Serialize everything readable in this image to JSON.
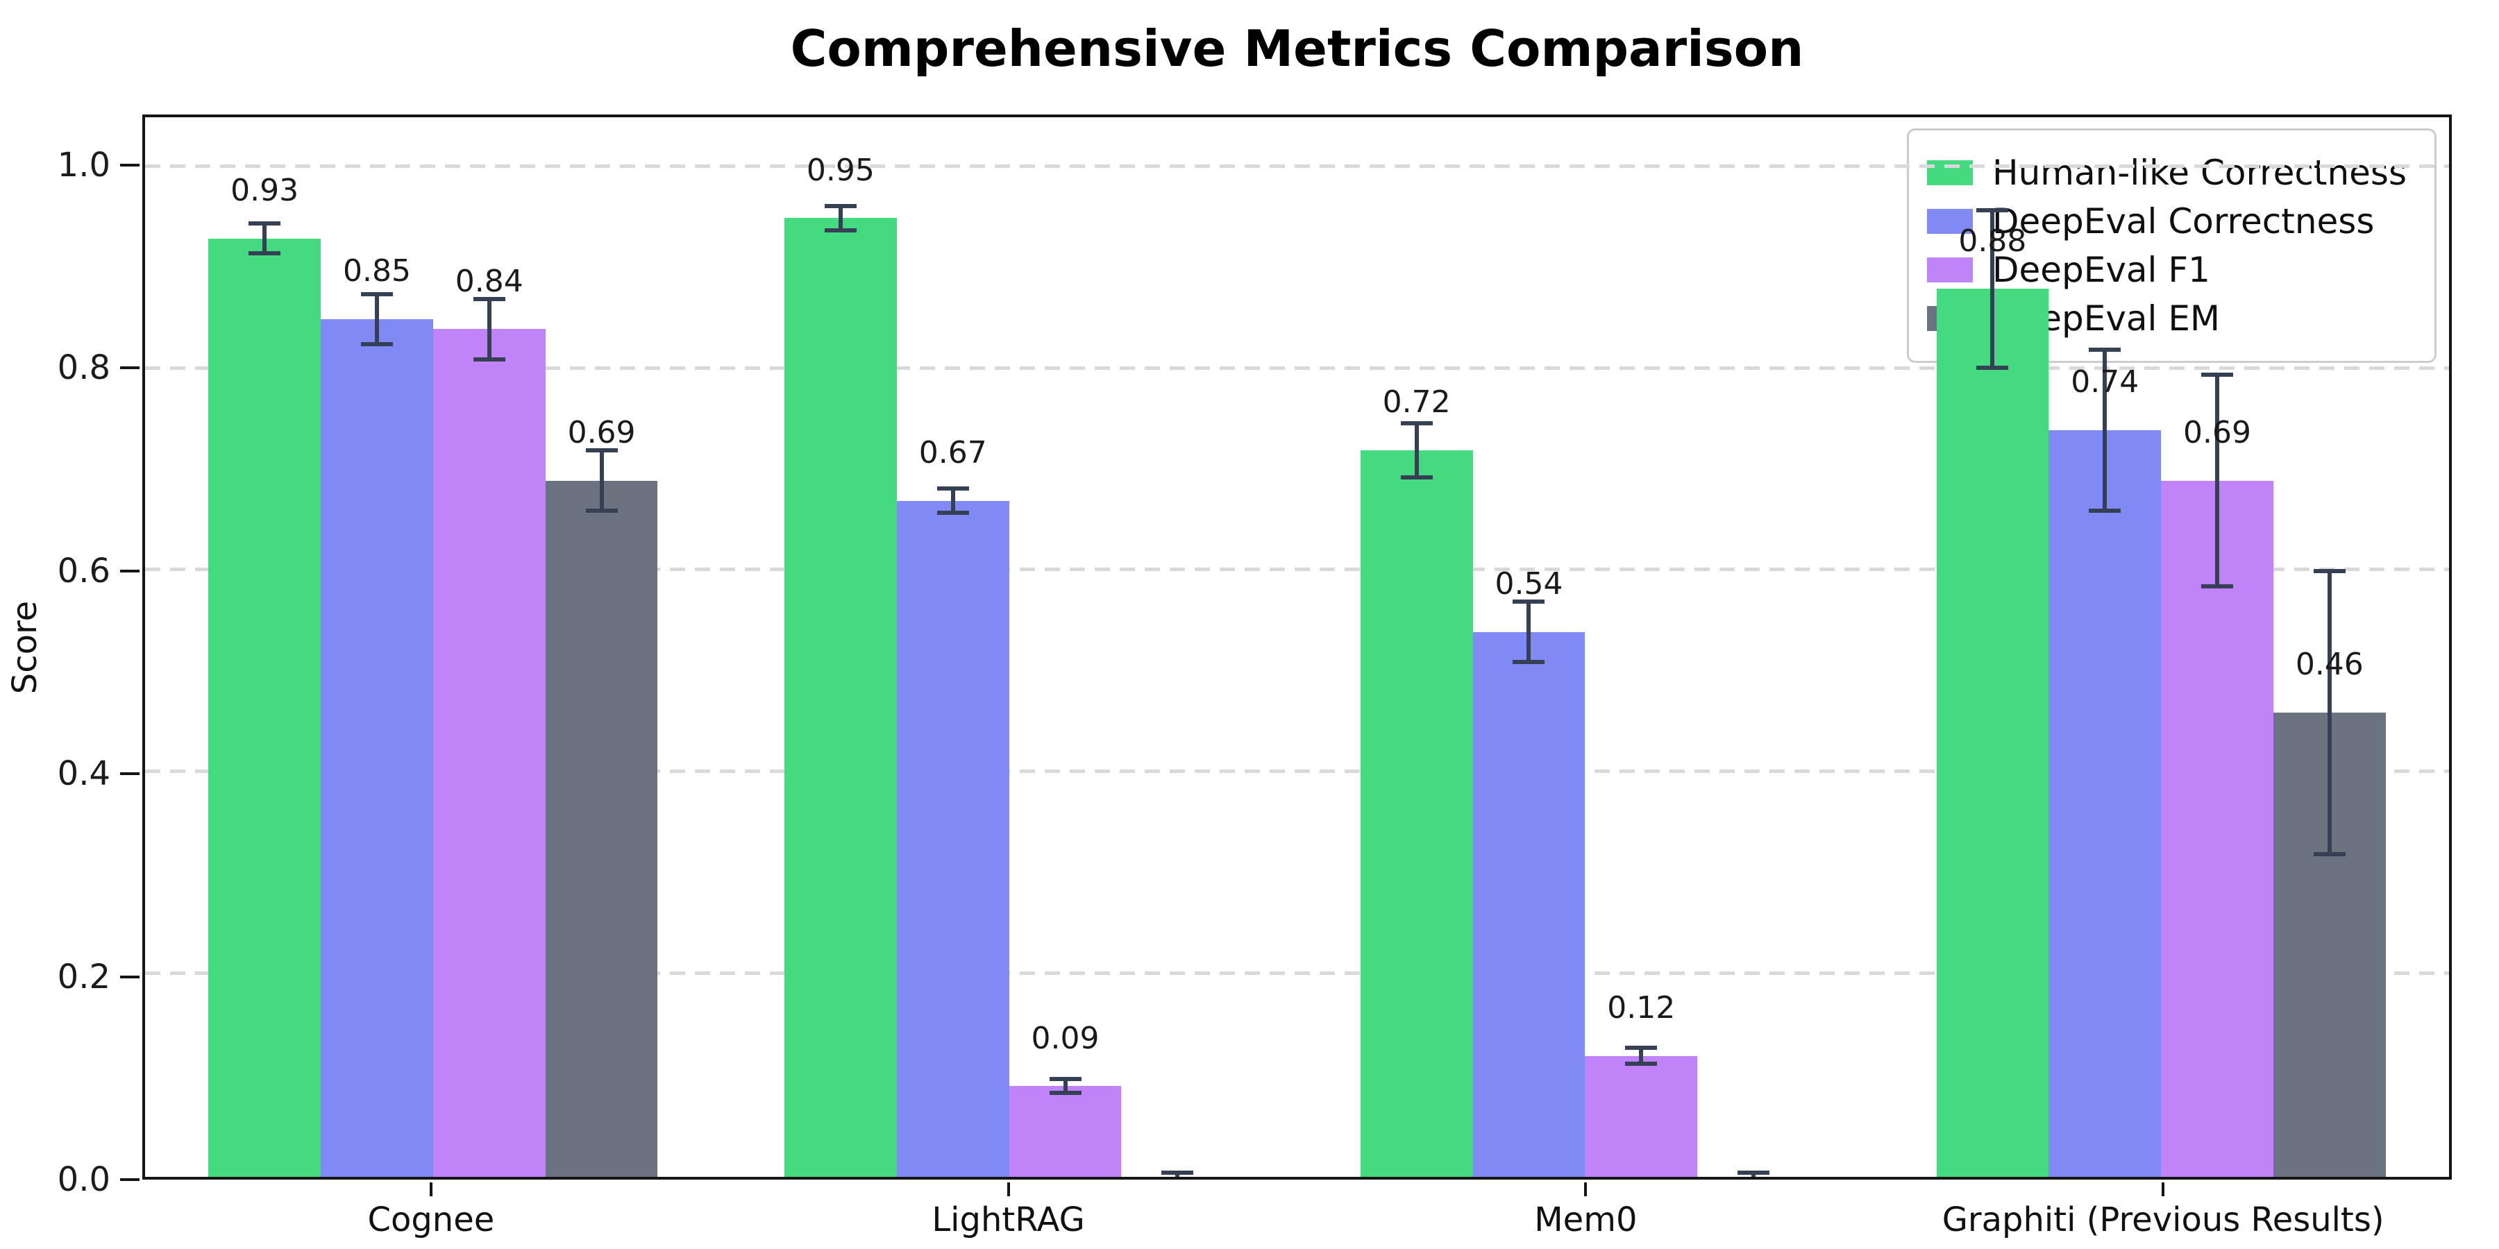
{
  "title": "Comprehensive Metrics Comparison",
  "axes": {
    "ylabel": "Score",
    "yticks": [
      {
        "value": 0.0,
        "label": "0.0"
      },
      {
        "value": 0.2,
        "label": "0.2"
      },
      {
        "value": 0.4,
        "label": "0.4"
      },
      {
        "value": 0.6,
        "label": "0.6"
      },
      {
        "value": 0.8,
        "label": "0.8"
      },
      {
        "value": 1.0,
        "label": "1.0"
      }
    ]
  },
  "styles": {
    "error_bar_color": "#364055",
    "grid_color": "#d9d9d9",
    "spine_color": "#141414",
    "legend_border_color": "#cccccc"
  },
  "chart_data": {
    "type": "bar",
    "title": "Comprehensive Metrics Comparison",
    "xlabel": "",
    "ylabel": "Score",
    "ylim": [
      0,
      1.05
    ],
    "grid": "horizontal-dashed",
    "legend_position": "upper-right",
    "categories": [
      "Cognee",
      "LightRAG",
      "Mem0",
      "Graphiti (Previous Results)"
    ],
    "series": [
      {
        "name": "Human-like Correctness",
        "color": "#45da7f",
        "values": [
          0.93,
          0.95,
          0.72,
          0.88
        ],
        "errors": [
          0.015,
          0.012,
          0.027,
          0.078
        ],
        "labels": [
          "0.93",
          "0.95",
          "0.72",
          "0.88"
        ]
      },
      {
        "name": "DeepEval Correctness",
        "color": "#818af4",
        "values": [
          0.85,
          0.67,
          0.54,
          0.74
        ],
        "errors": [
          0.025,
          0.012,
          0.03,
          0.08
        ],
        "labels": [
          "0.85",
          "0.67",
          "0.54",
          "0.74"
        ]
      },
      {
        "name": "DeepEval F1",
        "color": "#c184f8",
        "values": [
          0.84,
          0.09,
          0.12,
          0.69
        ],
        "errors": [
          0.03,
          0.007,
          0.008,
          0.105
        ],
        "labels": [
          "0.84",
          "0.09",
          "0.12",
          "0.69"
        ]
      },
      {
        "name": "DeepEval EM",
        "color": "#6b7280",
        "values": [
          0.69,
          0.0,
          0.0,
          0.46
        ],
        "errors": [
          0.03,
          0.004,
          0.004,
          0.14
        ],
        "labels": [
          "0.69",
          "",
          "",
          "0.46"
        ]
      }
    ]
  }
}
